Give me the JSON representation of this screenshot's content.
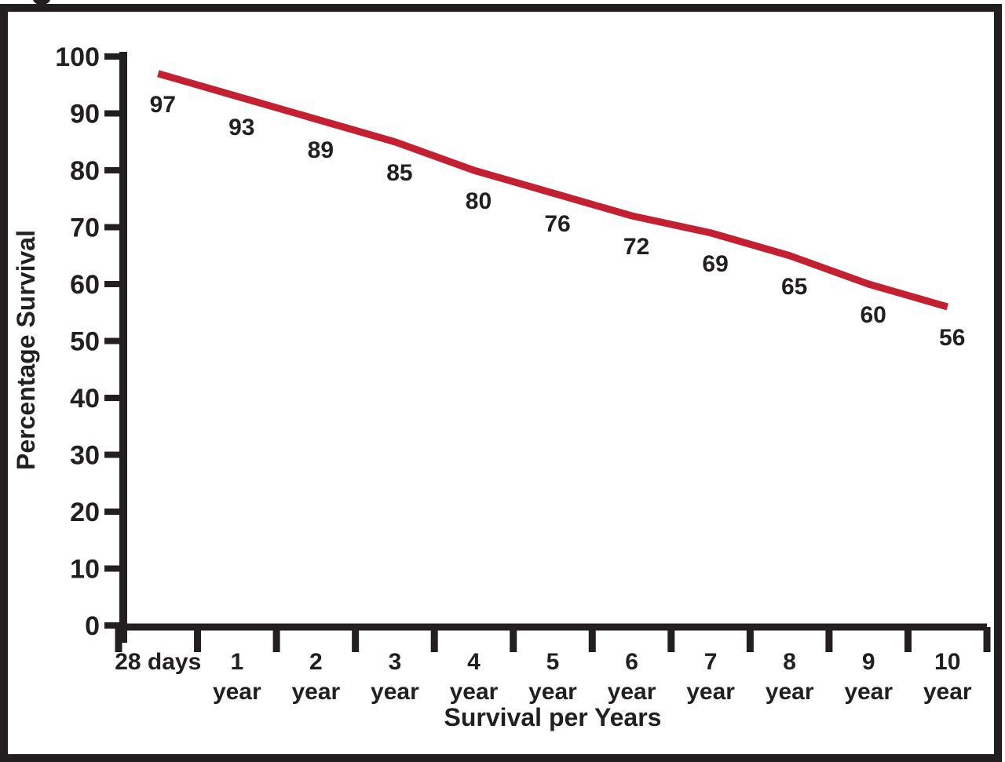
{
  "figure": {
    "frame_color": "#231f20",
    "background_color": "#ffffff"
  },
  "chart_data": {
    "type": "line",
    "title": "",
    "xlabel": "Survival per Years",
    "ylabel": "Percentage Survival",
    "categories": [
      "28 days",
      "1 year",
      "2 year",
      "3 year",
      "4 year",
      "5 year",
      "6 year",
      "7 year",
      "8 year",
      "9 year",
      "10 year"
    ],
    "category_label_lines": [
      [
        "28 days"
      ],
      [
        "1",
        "year"
      ],
      [
        "2",
        "year"
      ],
      [
        "3",
        "year"
      ],
      [
        "4",
        "year"
      ],
      [
        "5",
        "year"
      ],
      [
        "6",
        "year"
      ],
      [
        "7",
        "year"
      ],
      [
        "8",
        "year"
      ],
      [
        "9",
        "year"
      ],
      [
        "10",
        "year"
      ]
    ],
    "series": [
      {
        "name": "Percentage Survival",
        "values": [
          97,
          93,
          89,
          85,
          80,
          76,
          72,
          69,
          65,
          60,
          56
        ]
      }
    ],
    "y_ticks": [
      100,
      90,
      80,
      70,
      60,
      50,
      40,
      30,
      20,
      10,
      0
    ],
    "ylim": [
      0,
      100
    ],
    "grid": false,
    "legend": "none",
    "show_point_labels": true,
    "line_color": "#c32032",
    "axis_color": "#231f20",
    "label_color": "#231f20"
  }
}
